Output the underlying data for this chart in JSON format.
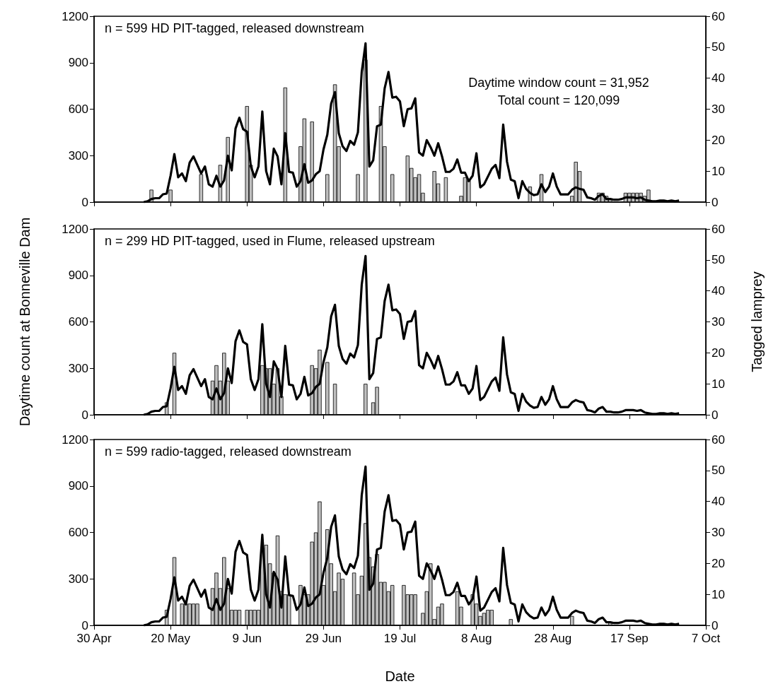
{
  "chart_data": [
    {
      "type": "bar",
      "annotations": [
        "n = 599 HD PIT-tagged, released downstream",
        "Daytime window count = 31,952",
        "Total count = 120,099"
      ],
      "xlim": [
        "--04-30",
        "--10-07"
      ],
      "xticks": [
        {
          "value": "--04-30",
          "label": null
        },
        {
          "value": "--05-20",
          "label": null
        },
        {
          "value": "--06-09",
          "label": null
        },
        {
          "value": "--06-29",
          "label": null
        },
        {
          "value": "--07-19",
          "label": null
        },
        {
          "value": "--08-08",
          "label": null
        },
        {
          "value": "--08-28",
          "label": null
        },
        {
          "value": "--09-17",
          "label": null
        },
        {
          "value": "--10-07",
          "label": null
        }
      ],
      "ylim": [
        0,
        1200
      ],
      "yticks": [
        0,
        300,
        600,
        900,
        1200
      ],
      "y2lim": [
        0,
        60
      ],
      "y2ticks": [
        0,
        10,
        20,
        30,
        40,
        50,
        60
      ],
      "tick_labels": "y",
      "x": [
        "--05-13",
        "--05-14",
        "--05-15",
        "--05-16",
        "--05-17",
        "--05-18",
        "--05-19",
        "--05-20",
        "--05-21",
        "--05-22",
        "--05-23",
        "--05-24",
        "--05-25",
        "--05-26",
        "--05-27",
        "--05-28",
        "--05-29",
        "--05-30",
        "--05-31",
        "--06-01",
        "--06-02",
        "--06-03",
        "--06-04",
        "--06-05",
        "--06-06",
        "--06-07",
        "--06-08",
        "--06-09",
        "--06-10",
        "--06-11",
        "--06-12",
        "--06-13",
        "--06-14",
        "--06-15",
        "--06-16",
        "--06-17",
        "--06-18",
        "--06-19",
        "--06-20",
        "--06-21",
        "--06-22",
        "--06-23",
        "--06-24",
        "--06-25",
        "--06-26",
        "--06-27",
        "--06-28",
        "--06-29",
        "--06-30",
        "--07-01",
        "--07-02",
        "--07-03",
        "--07-04",
        "--07-05",
        "--07-06",
        "--07-07",
        "--07-08",
        "--07-09",
        "--07-10",
        "--07-11",
        "--07-12",
        "--07-13",
        "--07-14",
        "--07-15",
        "--07-16",
        "--07-17",
        "--07-18",
        "--07-19",
        "--07-20",
        "--07-21",
        "--07-22",
        "--07-23",
        "--07-24",
        "--07-25",
        "--07-26",
        "--07-27",
        "--07-28",
        "--07-29",
        "--07-30",
        "--07-31",
        "--08-01",
        "--08-02",
        "--08-03",
        "--08-04",
        "--08-05",
        "--08-06",
        "--08-07",
        "--08-08",
        "--08-09",
        "--08-10",
        "--08-11",
        "--08-12",
        "--08-13",
        "--08-14",
        "--08-15",
        "--08-16",
        "--08-17",
        "--08-18",
        "--08-19",
        "--08-20",
        "--08-21",
        "--08-22",
        "--08-23",
        "--08-24",
        "--08-25",
        "--08-26",
        "--08-27",
        "--08-28",
        "--08-29",
        "--08-30",
        "--08-31",
        "--09-01",
        "--09-02",
        "--09-03",
        "--09-04",
        "--09-05",
        "--09-06",
        "--09-07",
        "--09-08",
        "--09-09",
        "--09-10",
        "--09-11",
        "--09-12",
        "--09-13",
        "--09-14",
        "--09-15",
        "--09-16",
        "--09-17",
        "--09-18",
        "--09-19",
        "--09-20",
        "--09-21",
        "--09-22",
        "--09-23",
        "--09-24",
        "--09-25",
        "--09-26",
        "--09-27",
        "--09-28",
        "--09-29",
        "--09-30"
      ],
      "series": [
        {
          "axis": "y2",
          "color": "#c0c0c0",
          "x": [
            "--05-15",
            "--05-20",
            "--05-28",
            "--06-02",
            "--06-04",
            "--06-09",
            "--06-10",
            "--06-19",
            "--06-23",
            "--06-24",
            "--06-26",
            "--06-30",
            "--07-02",
            "--07-03",
            "--07-08",
            "--07-10",
            "--07-14",
            "--07-15",
            "--07-17",
            "--07-21",
            "--07-22",
            "--07-23",
            "--07-24",
            "--07-25",
            "--07-28",
            "--07-29",
            "--07-31",
            "--08-04",
            "--08-05",
            "--08-06",
            "--08-22",
            "--08-25",
            "--09-02",
            "--09-03",
            "--09-04",
            "--09-09",
            "--09-10",
            "--09-11",
            "--09-12",
            "--09-16",
            "--09-17",
            "--09-18",
            "--09-19",
            "--09-20",
            "--09-21",
            "--09-22"
          ],
          "values": [
            4,
            4,
            9,
            12,
            21,
            31,
            12,
            37,
            18,
            27,
            26,
            9,
            38,
            18,
            9,
            46,
            31,
            18,
            9,
            15,
            11,
            8,
            9,
            3,
            10,
            6,
            8,
            2,
            8,
            7,
            5,
            9,
            2,
            13,
            10,
            3,
            3,
            2,
            1,
            3,
            3,
            3,
            3,
            3,
            2,
            4
          ]
        },
        {
          "type": "line",
          "color": "#000000",
          "values": [
            0,
            5,
            20,
            25,
            25,
            50,
            55,
            170,
            310,
            160,
            185,
            135,
            255,
            295,
            240,
            185,
            230,
            115,
            100,
            170,
            100,
            140,
            300,
            205,
            475,
            545,
            470,
            455,
            230,
            160,
            230,
            585,
            200,
            115,
            345,
            295,
            115,
            445,
            195,
            190,
            100,
            135,
            245,
            125,
            140,
            180,
            200,
            340,
            435,
            635,
            710,
            445,
            360,
            330,
            395,
            370,
            450,
            840,
            1025,
            230,
            270,
            490,
            500,
            735,
            840,
            675,
            680,
            650,
            490,
            600,
            605,
            670,
            320,
            300,
            400,
            355,
            300,
            380,
            295,
            195,
            195,
            215,
            275,
            190,
            190,
            135,
            170,
            315,
            95,
            115,
            165,
            215,
            240,
            155,
            500,
            260,
            145,
            135,
            25,
            135,
            85,
            60,
            45,
            50,
            115,
            65,
            100,
            185,
            100,
            50,
            50,
            50,
            80,
            95,
            85,
            80,
            30,
            25,
            15,
            40,
            50,
            20,
            20,
            15,
            15,
            20,
            30,
            30,
            30,
            25,
            30,
            15,
            10,
            5,
            5,
            10,
            10,
            5,
            10,
            5,
            10
          ]
        }
      ]
    },
    {
      "type": "bar",
      "annotations": [
        "n = 299 HD PIT-tagged, used in Flume, released upstream"
      ],
      "ylabel": "Daytime count at Bonneville Dam",
      "y2label": "Tagged lamprey",
      "xlim": [
        "--04-30",
        "--10-07"
      ],
      "xticks": [
        {
          "value": "--04-30",
          "label": null
        },
        {
          "value": "--05-20",
          "label": null
        },
        {
          "value": "--06-09",
          "label": null
        },
        {
          "value": "--06-29",
          "label": null
        },
        {
          "value": "--07-19",
          "label": null
        },
        {
          "value": "--08-08",
          "label": null
        },
        {
          "value": "--08-28",
          "label": null
        },
        {
          "value": "--09-17",
          "label": null
        },
        {
          "value": "--10-07",
          "label": null
        }
      ],
      "ylim": [
        0,
        1200
      ],
      "yticks": [
        0,
        300,
        600,
        900,
        1200
      ],
      "y2lim": [
        0,
        60
      ],
      "y2ticks": [
        0,
        10,
        20,
        30,
        40,
        50,
        60
      ],
      "tick_labels": "y",
      "x": [
        "--05-13",
        "--05-14",
        "--05-15",
        "--05-16",
        "--05-17",
        "--05-18",
        "--05-19",
        "--05-20",
        "--05-21",
        "--05-22",
        "--05-23",
        "--05-24",
        "--05-25",
        "--05-26",
        "--05-27",
        "--05-28",
        "--05-29",
        "--05-30",
        "--05-31",
        "--06-01",
        "--06-02",
        "--06-03",
        "--06-04",
        "--06-05",
        "--06-06",
        "--06-07",
        "--06-08",
        "--06-09",
        "--06-10",
        "--06-11",
        "--06-12",
        "--06-13",
        "--06-14",
        "--06-15",
        "--06-16",
        "--06-17",
        "--06-18",
        "--06-19",
        "--06-20",
        "--06-21",
        "--06-22",
        "--06-23",
        "--06-24",
        "--06-25",
        "--06-26",
        "--06-27",
        "--06-28",
        "--06-29",
        "--06-30",
        "--07-01",
        "--07-02",
        "--07-03",
        "--07-04",
        "--07-05",
        "--07-06",
        "--07-07",
        "--07-08",
        "--07-09",
        "--07-10",
        "--07-11",
        "--07-12",
        "--07-13",
        "--07-14",
        "--07-15",
        "--07-16",
        "--07-17",
        "--07-18",
        "--07-19",
        "--07-20",
        "--07-21",
        "--07-22",
        "--07-23",
        "--07-24",
        "--07-25",
        "--07-26",
        "--07-27",
        "--07-28",
        "--07-29",
        "--07-30",
        "--07-31",
        "--08-01",
        "--08-02",
        "--08-03",
        "--08-04",
        "--08-05",
        "--08-06",
        "--08-07",
        "--08-08",
        "--08-09",
        "--08-10",
        "--08-11",
        "--08-12",
        "--08-13",
        "--08-14",
        "--08-15",
        "--08-16",
        "--08-17",
        "--08-18",
        "--08-19",
        "--08-20",
        "--08-21",
        "--08-22",
        "--08-23",
        "--08-24",
        "--08-25",
        "--08-26",
        "--08-27",
        "--08-28",
        "--08-29",
        "--08-30",
        "--08-31",
        "--09-01",
        "--09-02",
        "--09-03",
        "--09-04",
        "--09-05",
        "--09-06",
        "--09-07",
        "--09-08",
        "--09-09",
        "--09-10",
        "--09-11",
        "--09-12",
        "--09-13",
        "--09-14",
        "--09-15",
        "--09-16",
        "--09-17",
        "--09-18",
        "--09-19",
        "--09-20",
        "--09-21",
        "--09-22",
        "--09-23",
        "--09-24",
        "--09-25",
        "--09-26",
        "--09-27",
        "--09-28",
        "--09-29",
        "--09-30"
      ],
      "series": [
        {
          "axis": "y2",
          "color": "#c0c0c0",
          "x": [
            "--05-19",
            "--05-21",
            "--05-31",
            "--06-01",
            "--06-02",
            "--06-03",
            "--06-04",
            "--06-13",
            "--06-14",
            "--06-15",
            "--06-16",
            "--06-17",
            "--06-18",
            "--06-26",
            "--06-27",
            "--06-28",
            "--06-30",
            "--07-02",
            "--07-10",
            "--07-12",
            "--07-13"
          ],
          "values": [
            4,
            20,
            11,
            16,
            11,
            20,
            11,
            16,
            15,
            15,
            10,
            15,
            6,
            16,
            15,
            21,
            17,
            10,
            10,
            4,
            9
          ]
        },
        {
          "type": "line",
          "color": "#000000",
          "values": [
            0,
            5,
            20,
            25,
            25,
            50,
            55,
            170,
            310,
            160,
            185,
            135,
            255,
            295,
            240,
            185,
            230,
            115,
            100,
            170,
            100,
            140,
            300,
            205,
            475,
            545,
            470,
            455,
            230,
            160,
            230,
            585,
            200,
            115,
            345,
            295,
            115,
            445,
            195,
            190,
            100,
            135,
            245,
            125,
            140,
            180,
            200,
            340,
            435,
            635,
            710,
            445,
            360,
            330,
            395,
            370,
            450,
            840,
            1025,
            230,
            270,
            490,
            500,
            735,
            840,
            675,
            680,
            650,
            490,
            600,
            605,
            670,
            320,
            300,
            400,
            355,
            300,
            380,
            295,
            195,
            195,
            215,
            275,
            190,
            190,
            135,
            170,
            315,
            95,
            115,
            165,
            215,
            240,
            155,
            500,
            260,
            145,
            135,
            25,
            135,
            85,
            60,
            45,
            50,
            115,
            65,
            100,
            185,
            100,
            50,
            50,
            50,
            80,
            95,
            85,
            80,
            30,
            25,
            15,
            40,
            50,
            20,
            20,
            15,
            15,
            20,
            30,
            30,
            30,
            25,
            30,
            15,
            10,
            5,
            5,
            10,
            10,
            5,
            10,
            5,
            10
          ]
        }
      ]
    },
    {
      "type": "bar",
      "annotations": [
        "n = 599 radio-tagged, released downstream"
      ],
      "xlabel": "Date",
      "xlim": [
        "--04-30",
        "--10-07"
      ],
      "xticks": [
        {
          "value": "--04-30",
          "label": "30 Apr"
        },
        {
          "value": "--05-20",
          "label": "20 May"
        },
        {
          "value": "--06-09",
          "label": "9 Jun"
        },
        {
          "value": "--06-29",
          "label": "29 Jun"
        },
        {
          "value": "--07-19",
          "label": "19 Jul"
        },
        {
          "value": "--08-08",
          "label": "8 Aug"
        },
        {
          "value": "--08-28",
          "label": "28 Aug"
        },
        {
          "value": "--09-17",
          "label": "17 Sep"
        },
        {
          "value": "--10-07",
          "label": "7 Oct"
        }
      ],
      "ylim": [
        0,
        1200
      ],
      "yticks": [
        0,
        300,
        600,
        900,
        1200
      ],
      "y2lim": [
        0,
        60
      ],
      "y2ticks": [
        0,
        10,
        20,
        30,
        40,
        50,
        60
      ],
      "x": [
        "--05-13",
        "--05-14",
        "--05-15",
        "--05-16",
        "--05-17",
        "--05-18",
        "--05-19",
        "--05-20",
        "--05-21",
        "--05-22",
        "--05-23",
        "--05-24",
        "--05-25",
        "--05-26",
        "--05-27",
        "--05-28",
        "--05-29",
        "--05-30",
        "--05-31",
        "--06-01",
        "--06-02",
        "--06-03",
        "--06-04",
        "--06-05",
        "--06-06",
        "--06-07",
        "--06-08",
        "--06-09",
        "--06-10",
        "--06-11",
        "--06-12",
        "--06-13",
        "--06-14",
        "--06-15",
        "--06-16",
        "--06-17",
        "--06-18",
        "--06-19",
        "--06-20",
        "--06-21",
        "--06-22",
        "--06-23",
        "--06-24",
        "--06-25",
        "--06-26",
        "--06-27",
        "--06-28",
        "--06-29",
        "--06-30",
        "--07-01",
        "--07-02",
        "--07-03",
        "--07-04",
        "--07-05",
        "--07-06",
        "--07-07",
        "--07-08",
        "--07-09",
        "--07-10",
        "--07-11",
        "--07-12",
        "--07-13",
        "--07-14",
        "--07-15",
        "--07-16",
        "--07-17",
        "--07-18",
        "--07-19",
        "--07-20",
        "--07-21",
        "--07-22",
        "--07-23",
        "--07-24",
        "--07-25",
        "--07-26",
        "--07-27",
        "--07-28",
        "--07-29",
        "--07-30",
        "--07-31",
        "--08-01",
        "--08-02",
        "--08-03",
        "--08-04",
        "--08-05",
        "--08-06",
        "--08-07",
        "--08-08",
        "--08-09",
        "--08-10",
        "--08-11",
        "--08-12",
        "--08-13",
        "--08-14",
        "--08-15",
        "--08-16",
        "--08-17",
        "--08-18",
        "--08-19",
        "--08-20",
        "--08-21",
        "--08-22",
        "--08-23",
        "--08-24",
        "--08-25",
        "--08-26",
        "--08-27",
        "--08-28",
        "--08-29",
        "--08-30",
        "--08-31",
        "--09-01",
        "--09-02",
        "--09-03",
        "--09-04",
        "--09-05",
        "--09-06",
        "--09-07",
        "--09-08",
        "--09-09",
        "--09-10",
        "--09-11",
        "--09-12",
        "--09-13",
        "--09-14",
        "--09-15",
        "--09-16",
        "--09-17",
        "--09-18",
        "--09-19",
        "--09-20",
        "--09-21",
        "--09-22",
        "--09-23",
        "--09-24",
        "--09-25",
        "--09-26",
        "--09-27",
        "--09-28",
        "--09-29",
        "--09-30"
      ],
      "series": [
        {
          "axis": "y2",
          "color": "#c0c0c0",
          "x": [
            "--05-19",
            "--05-21",
            "--05-23",
            "--05-24",
            "--05-25",
            "--05-26",
            "--05-27",
            "--05-31",
            "--06-01",
            "--06-02",
            "--06-03",
            "--06-04",
            "--06-05",
            "--06-06",
            "--06-07",
            "--06-09",
            "--06-10",
            "--06-11",
            "--06-12",
            "--06-13",
            "--06-14",
            "--06-15",
            "--06-16",
            "--06-17",
            "--06-18",
            "--06-19",
            "--06-20",
            "--06-23",
            "--06-24",
            "--06-25",
            "--06-26",
            "--06-27",
            "--06-28",
            "--06-29",
            "--06-30",
            "--07-01",
            "--07-02",
            "--07-03",
            "--07-04",
            "--07-07",
            "--07-08",
            "--07-09",
            "--07-10",
            "--07-11",
            "--07-12",
            "--07-13",
            "--07-14",
            "--07-15",
            "--07-16",
            "--07-17",
            "--07-20",
            "--07-21",
            "--07-22",
            "--07-23",
            "--07-25",
            "--07-26",
            "--07-27",
            "--07-28",
            "--07-29",
            "--07-30",
            "--08-03",
            "--08-04",
            "--08-07",
            "--08-08",
            "--08-09",
            "--08-10",
            "--08-11",
            "--08-12",
            "--08-17",
            "--09-02",
            "--09-12"
          ],
          "values": [
            5,
            22,
            7,
            7,
            7,
            7,
            7,
            12,
            17,
            12,
            22,
            12,
            5,
            5,
            5,
            5,
            5,
            5,
            5,
            25,
            26,
            20,
            17,
            29,
            11,
            10,
            10,
            13,
            10,
            10,
            27,
            30,
            40,
            13,
            31,
            20,
            11,
            17,
            15,
            17,
            10,
            16,
            33,
            22,
            19,
            23,
            14,
            14,
            11,
            13,
            13,
            10,
            10,
            10,
            4,
            11,
            20,
            2,
            6,
            7,
            11,
            6,
            10,
            7,
            3,
            4,
            5,
            5,
            2,
            3,
            1
          ]
        },
        {
          "type": "line",
          "color": "#000000",
          "values": [
            0,
            5,
            20,
            25,
            25,
            50,
            55,
            170,
            310,
            160,
            185,
            135,
            255,
            295,
            240,
            185,
            230,
            115,
            100,
            170,
            100,
            140,
            300,
            205,
            475,
            545,
            470,
            455,
            230,
            160,
            230,
            585,
            200,
            115,
            345,
            295,
            115,
            445,
            195,
            190,
            100,
            135,
            245,
            125,
            140,
            180,
            200,
            340,
            435,
            635,
            710,
            445,
            360,
            330,
            395,
            370,
            450,
            840,
            1025,
            230,
            270,
            490,
            500,
            735,
            840,
            675,
            680,
            650,
            490,
            600,
            605,
            670,
            320,
            300,
            400,
            355,
            300,
            380,
            295,
            195,
            195,
            215,
            275,
            190,
            190,
            135,
            170,
            315,
            95,
            115,
            165,
            215,
            240,
            155,
            500,
            260,
            145,
            135,
            25,
            135,
            85,
            60,
            45,
            50,
            115,
            65,
            100,
            185,
            100,
            50,
            50,
            50,
            80,
            95,
            85,
            80,
            30,
            25,
            15,
            40,
            50,
            20,
            20,
            15,
            15,
            20,
            30,
            30,
            30,
            25,
            30,
            15,
            10,
            5,
            5,
            10,
            10,
            5,
            10,
            5,
            10
          ]
        }
      ]
    }
  ]
}
